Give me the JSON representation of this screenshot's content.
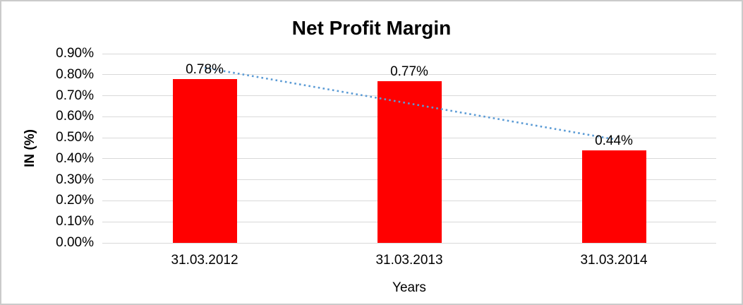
{
  "frame": {
    "background": "#FFFFFF",
    "border_color": "#CBCBCB"
  },
  "chart_data": {
    "type": "bar",
    "title": "Net Profit Margin",
    "xlabel": "Years",
    "ylabel": "IN (%)",
    "categories": [
      "31.03.2012",
      "31.03.2013",
      "31.03.2014"
    ],
    "values": [
      0.78,
      0.77,
      0.44
    ],
    "data_labels": [
      "0.78%",
      "0.77%",
      "0.44%"
    ],
    "unit": "%",
    "ylim": [
      0,
      0.9
    ],
    "ytick_step": 0.1,
    "ytick_labels": [
      "0.00%",
      "0.10%",
      "0.20%",
      "0.30%",
      "0.40%",
      "0.50%",
      "0.60%",
      "0.70%",
      "0.80%",
      "0.90%"
    ],
    "grid": true,
    "legend_position": "none",
    "bar_color": "#FF0000",
    "gridline_color": "#D9D9D9",
    "text_color": "#000000",
    "trendline": {
      "type": "linear",
      "style": "dotted",
      "color": "#5B9BD5",
      "start_value": 0.833,
      "end_value": 0.493
    }
  }
}
